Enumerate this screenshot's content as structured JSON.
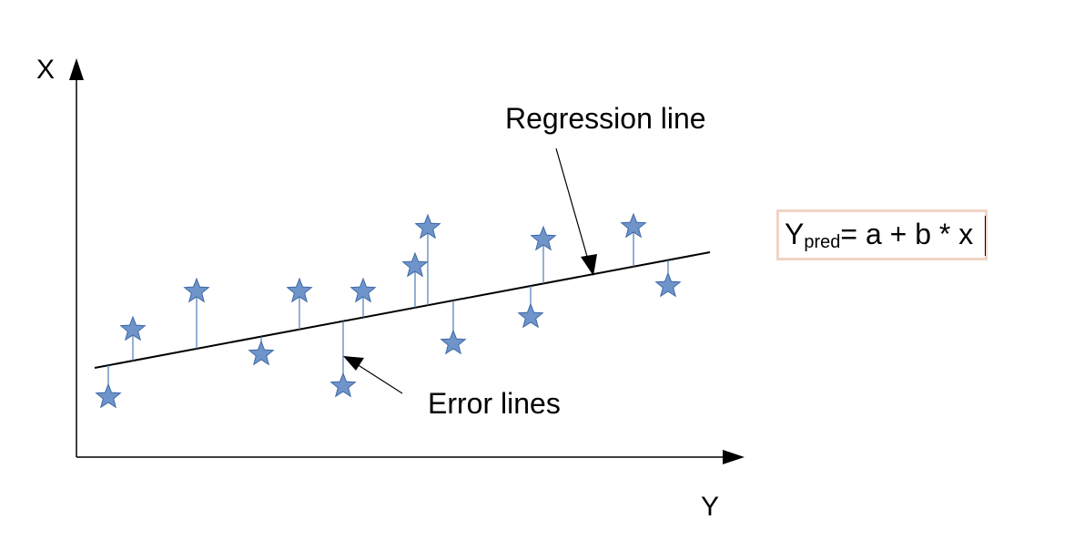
{
  "diagram": {
    "axis_vertical_label": "X",
    "axis_horizontal_label": "Y",
    "regression_label": "Regression line",
    "error_label": "Error lines",
    "formula": {
      "y": "Y",
      "subscript": "pred",
      "rest": "= a + b * x"
    },
    "colors": {
      "star_fill": "#6f94c9",
      "star_stroke": "#3e68a8",
      "error_line": "#4f7cb8",
      "line": "#000000",
      "formula_border": "#f1d3c5"
    }
  }
}
